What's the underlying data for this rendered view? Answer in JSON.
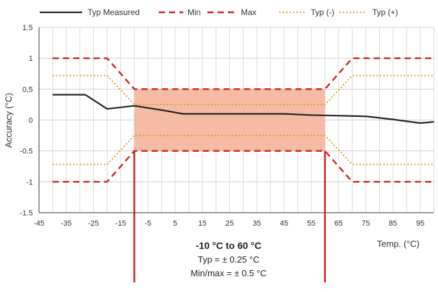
{
  "chart_data": {
    "type": "line",
    "xlabel": "Temp. (°C)",
    "ylabel": "Accuracy (°C)",
    "xlim": [
      -45,
      100
    ],
    "ylim": [
      -1.5,
      1.5
    ],
    "x_ticks": [
      -45,
      -35,
      -25,
      -15,
      -5,
      5,
      15,
      25,
      35,
      45,
      55,
      65,
      75,
      85,
      95
    ],
    "y_ticks": [
      1.5,
      1,
      0.5,
      0,
      -0.5,
      -1,
      -1.5
    ],
    "y_tick_labels": [
      "1.5",
      "1",
      "0,5",
      "0",
      "-0.5",
      "-1",
      "-1.5"
    ],
    "x_tick_labels": [
      "-45",
      "-35",
      "-25",
      "-15",
      "-5",
      "5",
      "15",
      "25",
      "35",
      "45",
      "55",
      "65",
      "75",
      "85",
      "95"
    ],
    "grid": true,
    "legend_position": "top",
    "shaded_region": {
      "x": [
        -10,
        60
      ],
      "y": [
        -0.5,
        0.5
      ],
      "color": "#f4b49a"
    },
    "series": [
      {
        "name": "Typ Measured",
        "style": "solid",
        "color": "#222222",
        "x": [
          -40,
          -28,
          -20,
          -10,
          0,
          8,
          20,
          30,
          45,
          55,
          65,
          75,
          85,
          95,
          100
        ],
        "y": [
          0.41,
          0.41,
          0.18,
          0.23,
          0.16,
          0.1,
          0.1,
          0.1,
          0.1,
          0.08,
          0.07,
          0.06,
          0.01,
          -0.05,
          -0.03
        ]
      },
      {
        "name": "Min",
        "style": "dashed",
        "color": "#cc1f1f",
        "x": [
          -40,
          -20,
          -10,
          60,
          70,
          100
        ],
        "y": [
          -1.0,
          -1.0,
          -0.5,
          -0.5,
          -1.0,
          -1.0
        ]
      },
      {
        "name": "Max",
        "style": "dashed",
        "color": "#cc1f1f",
        "x": [
          -40,
          -20,
          -10,
          60,
          70,
          100
        ],
        "y": [
          1.0,
          1.0,
          0.5,
          0.5,
          1.0,
          1.0
        ]
      },
      {
        "name": "Typ (-)",
        "style": "dotted",
        "color": "#e39a1f",
        "x": [
          -40,
          -20,
          -10,
          60,
          70,
          100
        ],
        "y": [
          -0.72,
          -0.72,
          -0.25,
          -0.25,
          -0.72,
          -0.72
        ]
      },
      {
        "name": "Typ (+)",
        "style": "dotted",
        "color": "#e39a1f",
        "x": [
          -40,
          -20,
          -10,
          60,
          70,
          100
        ],
        "y": [
          0.72,
          0.72,
          0.25,
          0.25,
          0.72,
          0.72
        ]
      }
    ],
    "markers": {
      "x": [
        -10,
        60
      ],
      "color": "#cc1f1f"
    },
    "annotation": {
      "title": "-10 °C to 60 °C",
      "line1": "Typ = ± 0.25 °C",
      "line2": "Min/max = ± 0.5 °C"
    }
  }
}
